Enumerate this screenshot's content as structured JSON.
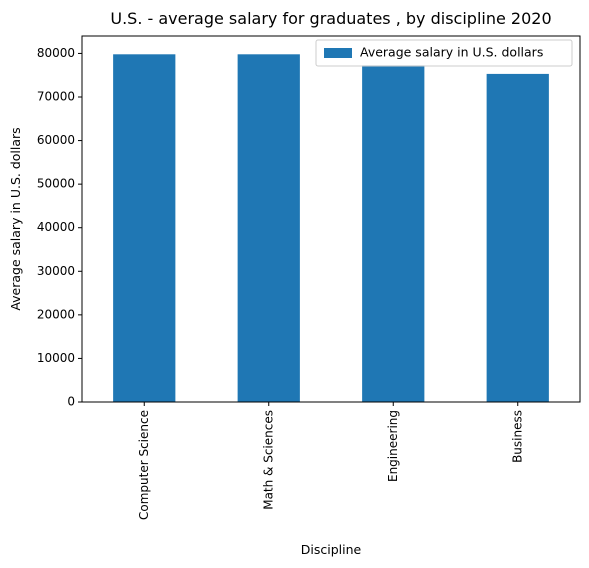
{
  "chart_data": {
    "type": "bar",
    "title": "U.S. - average salary for graduates , by discipline 2020",
    "xlabel": "Discipline",
    "ylabel": "Average salary in U.S. dollars",
    "categories": [
      "Computer Science",
      "Math & Sciences",
      "Engineering",
      "Business"
    ],
    "series": [
      {
        "name": "Average salary in U.S. dollars",
        "values": [
          79800,
          79800,
          77300,
          75300
        ],
        "color": "#1f77b4"
      }
    ],
    "ylim": [
      0,
      84000
    ],
    "yticks": [
      0,
      10000,
      20000,
      30000,
      40000,
      50000,
      60000,
      70000,
      80000
    ],
    "ytick_labels": [
      "0",
      "10000",
      "20000",
      "30000",
      "40000",
      "50000",
      "60000",
      "70000",
      "80000"
    ],
    "grid": false,
    "legend_position": "top-right"
  }
}
